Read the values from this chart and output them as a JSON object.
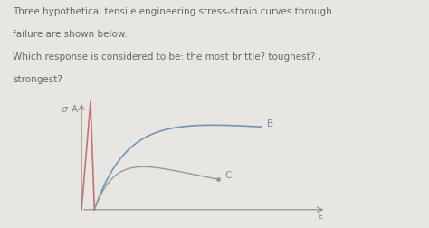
{
  "background_color": "#e8e6e3",
  "text_lines": [
    "Three hypothetical tensile engineering stress-strain curves through",
    "failure are shown below.",
    "Which response is considered to be: the most brittle? toughest? ,",
    "strongest?"
  ],
  "text_fontsize": 7.5,
  "text_color": "#666666",
  "axis_color": "#888888",
  "curve_A_color": "#c87070",
  "curve_B_color": "#7096b8",
  "curve_C_color": "#999999",
  "label_fontsize": 7.5,
  "sigma_label": "σ",
  "epsilon_label": "ε"
}
